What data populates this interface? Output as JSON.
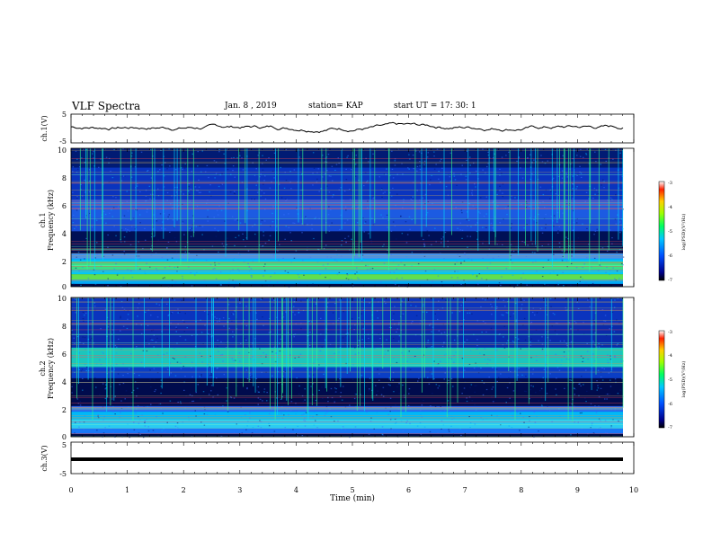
{
  "header": {
    "title": "VLF Spectra",
    "date": "Jan. 8 , 2019",
    "station": "station= KAP",
    "start": "start UT = 17: 30: 1"
  },
  "chart_data": [
    {
      "type": "line",
      "id": "ch1-waveform",
      "ylabel": "ch.1(V)",
      "ylim": [
        -5,
        5
      ],
      "yticks": [
        "5",
        "-5"
      ],
      "xlim": [
        0,
        10
      ],
      "note_series": "waveform fluctuating roughly between -1 and 2 V"
    },
    {
      "type": "heatmap",
      "id": "ch1-spectrogram",
      "ylabel": "ch.1 Frequency (kHz)",
      "ylim": [
        0,
        10
      ],
      "yticks": [
        "0",
        "2",
        "4",
        "6",
        "8",
        "10"
      ],
      "xlim": [
        0,
        9.8
      ],
      "colorbar": {
        "label": "log(PSD)(V²/Hz)",
        "range": [
          -7,
          -3
        ],
        "ticks": [
          "-3",
          "-4",
          "-5",
          "-6",
          "-7"
        ]
      }
    },
    {
      "type": "heatmap",
      "id": "ch2-spectrogram",
      "ylabel": "ch.2 Frequency (kHz)",
      "ylim": [
        0,
        10
      ],
      "yticks": [
        "0",
        "2",
        "4",
        "6",
        "8",
        "10"
      ],
      "xlim": [
        0,
        9.8
      ],
      "colorbar": {
        "label": "log(PSD)(V²/Hz)",
        "range": [
          -7,
          -3
        ],
        "ticks": [
          "-3",
          "-4",
          "-5",
          "-6",
          "-7"
        ]
      }
    },
    {
      "type": "line",
      "id": "ch3-waveform",
      "ylabel": "ch.3(V)",
      "ylim": [
        -5,
        5
      ],
      "yticks": [
        "5",
        "-5"
      ],
      "constant_value": 0,
      "xlim": [
        0,
        10
      ]
    }
  ],
  "xaxis": {
    "label": "Time (min)",
    "ticks": [
      "0",
      "1",
      "2",
      "3",
      "4",
      "5",
      "6",
      "7",
      "8",
      "9",
      "10"
    ]
  },
  "colorbar_ch1": {
    "label": "log(PSD)(V²/Hz)",
    "t3": "-3",
    "t4": "-4",
    "t5": "-5",
    "t6": "-6",
    "t7": "-7"
  },
  "colorbar_ch2": {
    "label": "log(PSD)(V²/Hz)",
    "t3": "-3",
    "t4": "-4",
    "t5": "-5",
    "t6": "-6",
    "t7": "-7"
  },
  "ch1_wave": {
    "ylabel": "ch.1(V)",
    "top": "5",
    "bottom": "-5"
  },
  "ch3_wave": {
    "ylabel": "ch.3(V)",
    "top": "5",
    "bottom": "-5"
  },
  "spec1": {
    "ylabel1": "ch.1",
    "ylabel2": "Frequency (kHz)",
    "t0": "0",
    "t2": "2",
    "t4": "4",
    "t6": "6",
    "t8": "8",
    "t10": "10"
  },
  "spec2": {
    "ylabel1": "ch.2",
    "ylabel2": "Frequency (kHz)",
    "t0": "0",
    "t2": "2",
    "t4": "4",
    "t6": "6",
    "t8": "8",
    "t10": "10"
  }
}
